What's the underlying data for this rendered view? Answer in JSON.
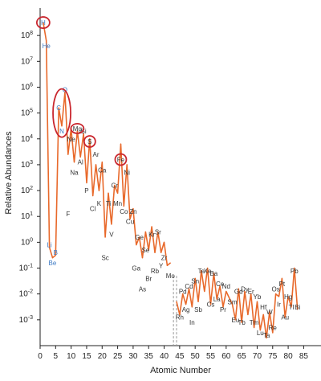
{
  "chart_data": {
    "type": "line",
    "title": "",
    "xlabel": "Atomic Number",
    "ylabel": "Relative Abundances",
    "xlim": [
      0,
      88
    ],
    "ylim_log10": [
      -4,
      9
    ],
    "y_scale": "log",
    "x_ticks": [
      0,
      5,
      10,
      15,
      20,
      25,
      30,
      35,
      40,
      45,
      50,
      55,
      60,
      65,
      70,
      75,
      80,
      85
    ],
    "y_ticks": [
      {
        "exp": 8,
        "label": "10",
        "sup": "8"
      },
      {
        "exp": 7,
        "label": "10",
        "sup": "7"
      },
      {
        "exp": 6,
        "label": "10",
        "sup": "6"
      },
      {
        "exp": 5,
        "label": "10",
        "sup": "5"
      },
      {
        "exp": 4,
        "label": "10",
        "sup": "4"
      },
      {
        "exp": 3,
        "label": "10",
        "sup": "3"
      },
      {
        "exp": 2,
        "label": "10",
        "sup": "2"
      },
      {
        "exp": 1,
        "label": "10",
        "sup": "1"
      },
      {
        "exp": 0,
        "label": "10",
        "sup": "0"
      },
      {
        "exp": -1,
        "label": "10",
        "sup": "-1"
      },
      {
        "exp": -2,
        "label": "10",
        "sup": "-2"
      },
      {
        "exp": -3,
        "label": "10",
        "sup": "-3"
      }
    ],
    "line_color": "#e8692b",
    "highlight_color": "#c9262e",
    "series": [
      {
        "x": [
          1,
          2,
          3,
          4,
          5,
          6,
          7,
          8,
          9,
          10,
          11,
          12,
          13,
          14,
          15,
          16,
          17,
          18,
          19,
          20,
          21,
          22,
          23,
          24,
          25,
          26,
          27,
          28,
          29,
          30,
          31,
          32,
          33,
          34,
          35,
          36,
          37,
          38,
          39,
          40,
          41,
          42,
          44,
          45,
          46,
          47,
          48,
          49,
          50,
          51,
          52,
          53,
          54,
          55,
          56,
          57,
          58,
          59,
          60,
          62,
          63,
          64,
          65,
          66,
          67,
          68,
          69,
          70,
          71,
          72,
          73,
          74,
          75,
          76,
          77,
          78,
          79,
          80,
          81,
          82,
          83
        ],
        "log10_y": [
          8.5,
          7.8,
          -0.2,
          -0.6,
          -0.5,
          5.2,
          4.5,
          5.8,
          3.4,
          4.4,
          3.1,
          4.3,
          3.3,
          4.2,
          2.3,
          4.0,
          1.8,
          3.0,
          2.0,
          3.1,
          0.2,
          1.9,
          0.7,
          2.2,
          1.9,
          3.8,
          1.4,
          3.0,
          0.9,
          1.3,
          -0.1,
          0.2,
          -0.6,
          0.4,
          -0.3,
          0.6,
          -0.4,
          0.4,
          -0.4,
          0.0,
          -0.9,
          -0.8,
          -2.3,
          -2.8,
          -2.0,
          -2.4,
          -1.8,
          -2.5,
          -1.4,
          -2.3,
          -1.1,
          -1.9,
          -1.0,
          -2.4,
          -1.2,
          -2.2,
          -1.7,
          -2.5,
          -1.9,
          -2.4,
          -3.0,
          -1.8,
          -3.1,
          -1.9,
          -2.8,
          -2.0,
          -3.3,
          -2.3,
          -3.4,
          -2.8,
          -3.7,
          -2.7,
          -3.5,
          -2.0,
          -2.1,
          -1.4,
          -2.9,
          -2.1,
          -2.5,
          -1.0,
          -2.6
        ]
      }
    ],
    "element_labels": [
      {
        "sym": "H",
        "x": 1,
        "ly": 8.5,
        "color": "blue"
      },
      {
        "sym": "He",
        "x": 2,
        "ly": 7.6,
        "color": "blue"
      },
      {
        "sym": "Li",
        "x": 3,
        "ly": -0.1,
        "color": "blue"
      },
      {
        "sym": "Be",
        "x": 4,
        "ly": -0.8,
        "color": "blue"
      },
      {
        "sym": "B",
        "x": 5,
        "ly": -0.4,
        "color": "blue"
      },
      {
        "sym": "C",
        "x": 6,
        "ly": 5.2,
        "color": "blue"
      },
      {
        "sym": "N",
        "x": 7,
        "ly": 4.3,
        "color": "blue"
      },
      {
        "sym": "O",
        "x": 8,
        "ly": 5.9,
        "color": "blue"
      },
      {
        "sym": "F",
        "x": 9,
        "ly": 1.1,
        "color": "dark"
      },
      {
        "sym": "Ne",
        "x": 10,
        "ly": 4.0,
        "color": "dark"
      },
      {
        "sym": "Na",
        "x": 11,
        "ly": 2.7,
        "color": "dark"
      },
      {
        "sym": "Mg",
        "x": 12,
        "ly": 4.4,
        "color": "dark"
      },
      {
        "sym": "Al",
        "x": 13,
        "ly": 3.1,
        "color": "dark"
      },
      {
        "sym": "Si",
        "x": 14,
        "ly": 4.3,
        "color": "dark"
      },
      {
        "sym": "P",
        "x": 15,
        "ly": 2.0,
        "color": "dark"
      },
      {
        "sym": "S",
        "x": 16,
        "ly": 3.9,
        "color": "dark"
      },
      {
        "sym": "Cl",
        "x": 17,
        "ly": 1.3,
        "color": "dark"
      },
      {
        "sym": "Ar",
        "x": 18,
        "ly": 3.4,
        "color": "dark"
      },
      {
        "sym": "K",
        "x": 19,
        "ly": 1.5,
        "color": "dark"
      },
      {
        "sym": "Ca",
        "x": 20,
        "ly": 2.8,
        "color": "dark"
      },
      {
        "sym": "Sc",
        "x": 21,
        "ly": -0.6,
        "color": "dark"
      },
      {
        "sym": "Ti",
        "x": 22,
        "ly": 1.5,
        "color": "dark"
      },
      {
        "sym": "V",
        "x": 23,
        "ly": 0.3,
        "color": "dark"
      },
      {
        "sym": "Cr",
        "x": 24,
        "ly": 2.2,
        "color": "dark"
      },
      {
        "sym": "Mn",
        "x": 25,
        "ly": 1.5,
        "color": "dark"
      },
      {
        "sym": "Fe",
        "x": 26,
        "ly": 3.2,
        "color": "dark"
      },
      {
        "sym": "Co",
        "x": 27,
        "ly": 1.2,
        "color": "dark"
      },
      {
        "sym": "Ni",
        "x": 28,
        "ly": 2.7,
        "color": "dark"
      },
      {
        "sym": "Cu",
        "x": 29,
        "ly": 0.8,
        "color": "dark"
      },
      {
        "sym": "Zn",
        "x": 30,
        "ly": 1.2,
        "color": "dark"
      },
      {
        "sym": "Ga",
        "x": 31,
        "ly": -1.0,
        "color": "dark"
      },
      {
        "sym": "Ge",
        "x": 32,
        "ly": 0.2,
        "color": "dark"
      },
      {
        "sym": "As",
        "x": 33,
        "ly": -1.8,
        "color": "dark"
      },
      {
        "sym": "Se",
        "x": 34,
        "ly": -0.3,
        "color": "dark"
      },
      {
        "sym": "Br",
        "x": 35,
        "ly": -1.4,
        "color": "dark"
      },
      {
        "sym": "Kr",
        "x": 36,
        "ly": 0.3,
        "color": "dark"
      },
      {
        "sym": "Rb",
        "x": 37,
        "ly": -1.1,
        "color": "dark"
      },
      {
        "sym": "Sr",
        "x": 38,
        "ly": 0.4,
        "color": "dark"
      },
      {
        "sym": "Y",
        "x": 39,
        "ly": -0.9,
        "color": "dark"
      },
      {
        "sym": "Zr",
        "x": 40,
        "ly": -0.6,
        "color": "dark"
      },
      {
        "sym": "Mo",
        "x": 42,
        "ly": -1.3,
        "color": "dark"
      },
      {
        "sym": "Rh",
        "x": 45,
        "ly": -2.9,
        "color": "dark"
      },
      {
        "sym": "Pd",
        "x": 46,
        "ly": -1.9,
        "color": "dark"
      },
      {
        "sym": "Ag",
        "x": 47,
        "ly": -2.6,
        "color": "dark"
      },
      {
        "sym": "Cd",
        "x": 48,
        "ly": -1.7,
        "color": "dark"
      },
      {
        "sym": "In",
        "x": 49,
        "ly": -3.1,
        "color": "dark"
      },
      {
        "sym": "Sn",
        "x": 50,
        "ly": -1.5,
        "color": "dark"
      },
      {
        "sym": "Sb",
        "x": 51,
        "ly": -2.6,
        "color": "dark"
      },
      {
        "sym": "Te",
        "x": 52,
        "ly": -1.1,
        "color": "dark"
      },
      {
        "sym": "Cs",
        "x": 55,
        "ly": -2.4,
        "color": "dark"
      },
      {
        "sym": "Xe",
        "x": 54,
        "ly": -1.1,
        "color": "dark"
      },
      {
        "sym": "Ba",
        "x": 56,
        "ly": -1.2,
        "color": "dark"
      },
      {
        "sym": "La",
        "x": 57,
        "ly": -2.2,
        "color": "dark"
      },
      {
        "sym": "Ce",
        "x": 58,
        "ly": -1.6,
        "color": "dark"
      },
      {
        "sym": "Pr",
        "x": 59,
        "ly": -2.6,
        "color": "dark"
      },
      {
        "sym": "Nd",
        "x": 60,
        "ly": -1.7,
        "color": "dark"
      },
      {
        "sym": "Sm",
        "x": 62,
        "ly": -2.3,
        "color": "dark"
      },
      {
        "sym": "Gd",
        "x": 64,
        "ly": -1.9,
        "color": "dark"
      },
      {
        "sym": "Eu",
        "x": 63,
        "ly": -3.0,
        "color": "dark"
      },
      {
        "sym": "Tb",
        "x": 65,
        "ly": -3.1,
        "color": "dark"
      },
      {
        "sym": "Dy",
        "x": 66,
        "ly": -1.8,
        "color": "dark"
      },
      {
        "sym": "Er",
        "x": 68,
        "ly": -1.9,
        "color": "dark"
      },
      {
        "sym": "Tm",
        "x": 69,
        "ly": -3.1,
        "color": "dark"
      },
      {
        "sym": "Yb",
        "x": 70,
        "ly": -2.1,
        "color": "dark"
      },
      {
        "sym": "Lu",
        "x": 71,
        "ly": -3.5,
        "color": "dark"
      },
      {
        "sym": "Hf",
        "x": 72,
        "ly": -2.5,
        "color": "dark"
      },
      {
        "sym": "Ta",
        "x": 73,
        "ly": -3.6,
        "color": "dark"
      },
      {
        "sym": "W",
        "x": 74,
        "ly": -2.7,
        "color": "dark"
      },
      {
        "sym": "Re",
        "x": 75,
        "ly": -3.3,
        "color": "dark"
      },
      {
        "sym": "Os",
        "x": 76,
        "ly": -1.8,
        "color": "dark"
      },
      {
        "sym": "Ir",
        "x": 77,
        "ly": -2.4,
        "color": "dark"
      },
      {
        "sym": "Pt",
        "x": 78,
        "ly": -1.6,
        "color": "dark"
      },
      {
        "sym": "Au",
        "x": 79,
        "ly": -2.9,
        "color": "dark"
      },
      {
        "sym": "Hg",
        "x": 80,
        "ly": -2.1,
        "color": "dark"
      },
      {
        "sym": "Tl",
        "x": 81,
        "ly": -2.5,
        "color": "dark"
      },
      {
        "sym": "Pb",
        "x": 82,
        "ly": -1.1,
        "color": "dark"
      },
      {
        "sym": "Bi",
        "x": 83,
        "ly": -2.5,
        "color": "dark"
      }
    ],
    "highlights": [
      {
        "target": "H",
        "x": 1,
        "ly": 8.5,
        "rx": 8,
        "ry": 7
      },
      {
        "target": "C-N-O",
        "x": 7,
        "ly": 5.0,
        "rx": 11,
        "ry": 30
      },
      {
        "target": "Mg",
        "x": 12,
        "ly": 4.4,
        "rx": 8,
        "ry": 6
      },
      {
        "target": "S",
        "x": 16,
        "ly": 3.9,
        "rx": 7,
        "ry": 7
      },
      {
        "target": "Fe",
        "x": 26,
        "ly": 3.2,
        "rx": 7,
        "ry": 7
      }
    ],
    "gap_markers_x": [
      43,
      44
    ],
    "grid": false
  }
}
